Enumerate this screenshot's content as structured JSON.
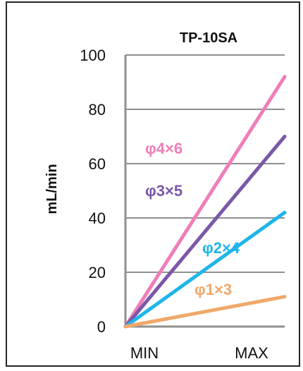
{
  "chart_data": {
    "type": "line",
    "title": "TP-10SA",
    "ylabel": "mL/min",
    "xlabel": "",
    "x_tick_labels": [
      "MIN",
      "MAX"
    ],
    "y_ticks": [
      0,
      20,
      40,
      60,
      80,
      100
    ],
    "ylim": [
      0,
      100
    ],
    "grid": "horizontal",
    "series": [
      {
        "name": "φ4×6",
        "color": "#ef7eb8",
        "values": [
          0,
          92
        ]
      },
      {
        "name": "φ3×5",
        "color": "#7b58a8",
        "values": [
          0,
          70
        ]
      },
      {
        "name": "φ2×4",
        "color": "#1fb5ea",
        "values": [
          0,
          42
        ]
      },
      {
        "name": "φ1×3",
        "color": "#f0a86a",
        "values": [
          0,
          11
        ]
      }
    ]
  }
}
